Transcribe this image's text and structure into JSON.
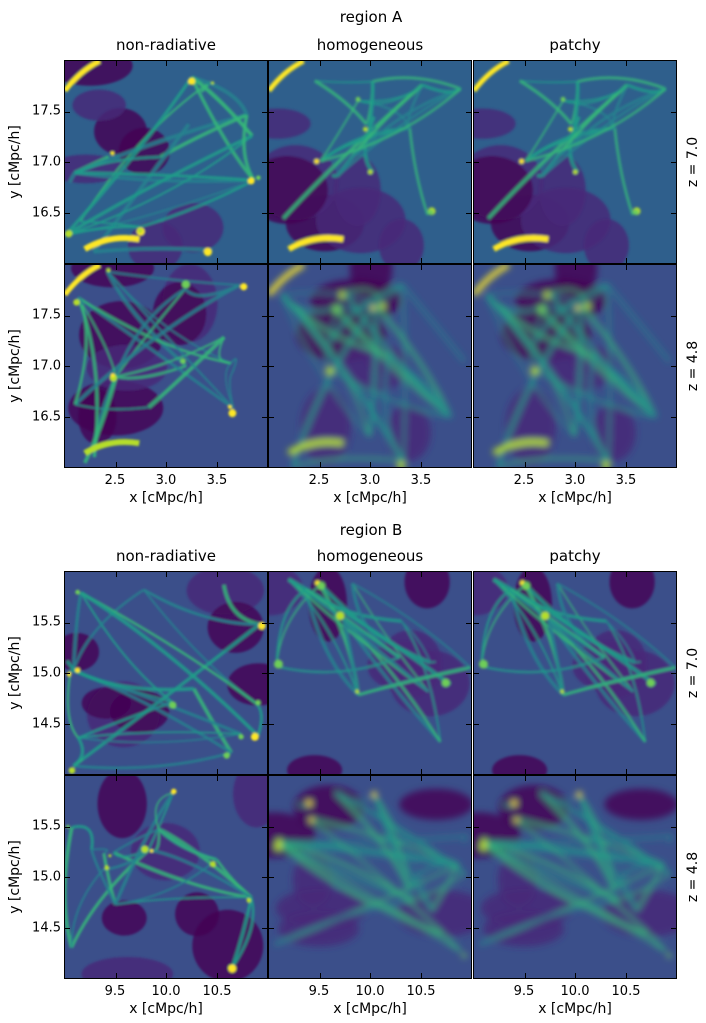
{
  "chart_data": {
    "type": "heatmap",
    "figure": "grid of 2D projected density maps (viridis colormap)",
    "colormap": "viridis",
    "columns": [
      "non-radiative",
      "homogeneous",
      "patchy"
    ],
    "rows": [
      "z = 7.0",
      "z = 4.8"
    ],
    "regions": [
      {
        "title": "region A",
        "xlabel": "x [cMpc/h]",
        "ylabel": "y [cMpc/h]",
        "xlim": [
          2.0,
          4.0
        ],
        "ylim": [
          16.0,
          18.0
        ],
        "xticks": [
          2.5,
          3.0,
          3.5
        ],
        "xtick_labels": [
          "2.5",
          "3.0",
          "3.5"
        ],
        "yticks": [
          16.5,
          17.0,
          17.5
        ],
        "ytick_labels": [
          "16.5",
          "17.0",
          "17.5"
        ]
      },
      {
        "title": "region B",
        "xlabel": "x [cMpc/h]",
        "ylabel": "y [cMpc/h]",
        "xlim": [
          9.0,
          11.0
        ],
        "ylim": [
          14.0,
          16.0
        ],
        "xticks": [
          9.5,
          10.0,
          10.5
        ],
        "xtick_labels": [
          "9.5",
          "10.0",
          "10.5"
        ],
        "yticks": [
          14.5,
          15.0,
          15.5
        ],
        "ytick_labels": [
          "14.5",
          "15.0",
          "15.5"
        ]
      }
    ]
  }
}
